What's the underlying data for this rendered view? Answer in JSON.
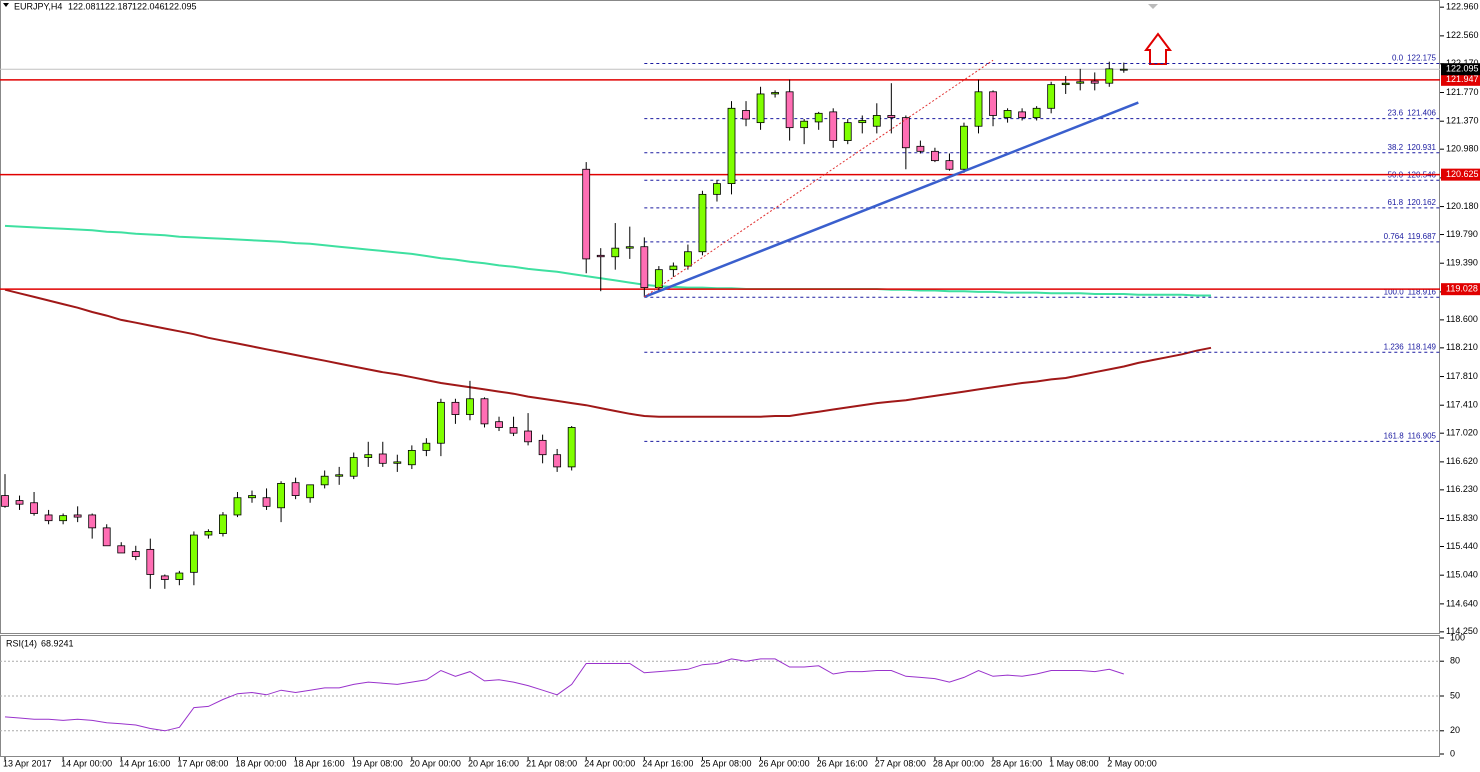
{
  "chart_data": {
    "type": "candlestick",
    "symbol": "EURJPY,H4",
    "categories": [
      "13 Apr 2017",
      null,
      null,
      null,
      "14 Apr 00:00",
      null,
      null,
      null,
      "14 Apr 16:00",
      null,
      null,
      null,
      "17 Apr 08:00",
      null,
      null,
      null,
      "18 Apr 00:00",
      null,
      null,
      null,
      "18 Apr 16:00",
      null,
      null,
      null,
      "19 Apr 08:00",
      null,
      null,
      null,
      "20 Apr 00:00",
      null,
      null,
      null,
      "20 Apr 16:00",
      null,
      null,
      null,
      "21 Apr 08:00",
      null,
      null,
      null,
      "24 Apr 00:00",
      null,
      null,
      null,
      "24 Apr 16:00",
      null,
      null,
      null,
      "25 Apr 08:00",
      null,
      null,
      null,
      "26 Apr 00:00",
      null,
      null,
      null,
      "26 Apr 16:00",
      null,
      null,
      null,
      "27 Apr 08:00",
      null,
      null,
      null,
      "28 Apr 00:00",
      null,
      null,
      null,
      "28 Apr 16:00",
      null,
      null,
      null,
      "1 May 08:00",
      null,
      null,
      null,
      "2 May 00:00",
      null,
      null,
      null,
      null,
      null,
      null,
      null
    ],
    "open": [
      116.15,
      116.08,
      116.05,
      115.88,
      115.8,
      115.88,
      115.88,
      115.7,
      115.45,
      115.37,
      115.4,
      115.03,
      114.98,
      115.08,
      115.6,
      115.62,
      115.88,
      116.12,
      116.12,
      115.98,
      116.33,
      116.12,
      116.3,
      116.42,
      116.42,
      116.68,
      116.73,
      116.6,
      116.58,
      116.78,
      116.88,
      117.45,
      117.28,
      117.5,
      117.18,
      117.1,
      117.05,
      116.92,
      116.72,
      116.55,
      120.7,
      119.5,
      119.48,
      119.6,
      119.62,
      119.05,
      119.3,
      119.35,
      119.55,
      120.35,
      120.5,
      121.52,
      121.35,
      121.75,
      121.78,
      121.28,
      121.36,
      121.5,
      121.1,
      121.35,
      121.3,
      121.45,
      121.42,
      121.02,
      120.95,
      120.82,
      120.7,
      121.3,
      121.78,
      121.42,
      121.5,
      121.42,
      121.55,
      121.88,
      121.9,
      121.93,
      121.9,
      122.081,
      null,
      null,
      null,
      null,
      null,
      null
    ],
    "high": [
      116.45,
      116.15,
      116.2,
      115.95,
      115.9,
      116.0,
      115.9,
      115.75,
      115.5,
      115.45,
      115.55,
      115.05,
      115.1,
      115.65,
      115.68,
      115.92,
      116.2,
      116.22,
      116.25,
      116.35,
      116.4,
      116.3,
      116.5,
      116.55,
      116.75,
      116.9,
      116.9,
      116.72,
      116.85,
      116.95,
      117.5,
      117.5,
      117.75,
      117.52,
      117.25,
      117.25,
      117.3,
      117.0,
      116.8,
      117.12,
      120.8,
      119.6,
      119.95,
      119.9,
      119.75,
      119.35,
      119.4,
      119.65,
      120.4,
      120.55,
      121.65,
      121.65,
      121.85,
      121.8,
      121.95,
      121.4,
      121.5,
      121.55,
      121.4,
      121.45,
      121.62,
      121.9,
      121.45,
      121.1,
      121.0,
      120.92,
      121.35,
      121.95,
      121.8,
      121.55,
      121.55,
      121.58,
      121.92,
      122.0,
      122.1,
      122.05,
      122.2,
      122.187,
      null,
      null,
      null,
      null,
      null,
      null
    ],
    "low": [
      115.98,
      115.95,
      115.87,
      115.75,
      115.75,
      115.78,
      115.55,
      115.45,
      115.35,
      115.25,
      114.85,
      114.85,
      114.9,
      114.9,
      115.55,
      115.58,
      115.85,
      116.05,
      115.95,
      115.78,
      116.1,
      116.05,
      116.25,
      116.3,
      116.38,
      116.55,
      116.55,
      116.48,
      116.52,
      116.7,
      116.7,
      117.15,
      117.2,
      117.1,
      117.05,
      116.98,
      116.85,
      116.6,
      116.48,
      116.5,
      119.25,
      119.0,
      119.3,
      119.45,
      118.92,
      119.0,
      119.2,
      119.3,
      119.5,
      120.25,
      120.35,
      121.3,
      121.25,
      121.7,
      121.1,
      121.05,
      121.25,
      121.0,
      121.05,
      121.2,
      121.2,
      121.2,
      120.7,
      120.92,
      120.8,
      120.68,
      120.65,
      121.2,
      121.3,
      121.35,
      121.38,
      121.38,
      121.48,
      121.75,
      121.8,
      121.8,
      121.85,
      122.046,
      null,
      null,
      null,
      null,
      null,
      null
    ],
    "close": [
      116.0,
      116.03,
      115.9,
      115.8,
      115.87,
      115.85,
      115.7,
      115.45,
      115.35,
      115.3,
      115.05,
      114.98,
      115.07,
      115.6,
      115.65,
      115.88,
      116.12,
      116.15,
      116.0,
      116.32,
      116.15,
      116.3,
      116.42,
      116.44,
      116.68,
      116.72,
      116.6,
      116.62,
      116.78,
      116.88,
      117.45,
      117.28,
      117.5,
      117.15,
      117.1,
      117.02,
      116.9,
      116.72,
      116.55,
      117.1,
      119.45,
      119.48,
      119.6,
      119.62,
      119.05,
      119.3,
      119.35,
      119.55,
      120.35,
      120.5,
      121.55,
      121.4,
      121.75,
      121.77,
      121.28,
      121.37,
      121.48,
      121.1,
      121.35,
      121.38,
      121.45,
      121.42,
      121.0,
      120.95,
      120.82,
      120.7,
      121.3,
      121.78,
      121.45,
      121.52,
      121.42,
      121.55,
      121.88,
      121.9,
      121.92,
      121.9,
      122.1,
      122.095,
      null,
      null,
      null,
      null,
      null,
      null
    ],
    "up_color": "#7fff00",
    "down_color": "#ff6eb4",
    "series": [
      {
        "color": "#3ee0a0",
        "values": [
          119.91,
          119.9,
          119.89,
          119.88,
          119.87,
          119.86,
          119.85,
          119.83,
          119.82,
          119.8,
          119.79,
          119.78,
          119.76,
          119.75,
          119.74,
          119.73,
          119.72,
          119.71,
          119.7,
          119.69,
          119.67,
          119.66,
          119.64,
          119.62,
          119.6,
          119.58,
          119.56,
          119.54,
          119.52,
          119.49,
          119.46,
          119.44,
          119.41,
          119.39,
          119.36,
          119.34,
          119.31,
          119.29,
          119.27,
          119.24,
          119.21,
          119.18,
          119.15,
          119.12,
          119.09,
          119.07,
          119.06,
          119.05,
          119.05,
          119.04,
          119.04,
          119.03,
          119.03,
          119.03,
          119.03,
          119.03,
          119.03,
          119.03,
          119.03,
          119.03,
          119.03,
          119.02,
          119.02,
          119.01,
          119.01,
          119.0,
          119.0,
          118.99,
          118.99,
          118.98,
          118.98,
          118.98,
          118.97,
          118.97,
          118.97,
          118.96,
          118.96,
          118.96,
          118.95,
          118.95,
          118.95,
          118.95,
          118.94,
          118.94
        ]
      },
      {
        "color": "#a01818",
        "values": [
          119.02,
          118.97,
          118.92,
          118.87,
          118.82,
          118.77,
          118.71,
          118.66,
          118.6,
          118.56,
          118.52,
          118.48,
          118.44,
          118.4,
          118.35,
          118.31,
          118.27,
          118.23,
          118.19,
          118.15,
          118.11,
          118.07,
          118.03,
          117.99,
          117.95,
          117.91,
          117.87,
          117.84,
          117.8,
          117.76,
          117.72,
          117.69,
          117.66,
          117.63,
          117.6,
          117.57,
          117.53,
          117.5,
          117.47,
          117.44,
          117.41,
          117.37,
          117.33,
          117.29,
          117.26,
          117.25,
          117.25,
          117.25,
          117.25,
          117.25,
          117.25,
          117.25,
          117.25,
          117.26,
          117.26,
          117.29,
          117.32,
          117.35,
          117.38,
          117.41,
          117.44,
          117.46,
          117.48,
          117.51,
          117.54,
          117.57,
          117.6,
          117.63,
          117.66,
          117.69,
          117.72,
          117.74,
          117.77,
          117.79,
          117.83,
          117.87,
          117.91,
          117.95,
          118.0,
          118.04,
          118.08,
          118.12,
          118.17,
          118.21
        ]
      }
    ],
    "hlines": [
      121.947,
      120.625,
      119.028
    ],
    "hline_color": "#e00000",
    "fib": {
      "x": 44,
      "color": "#1a1aa0",
      "levels": [
        {
          "label": "0.0",
          "price": 122.175
        },
        {
          "label": "23.6",
          "price": 121.406
        },
        {
          "label": "38.2",
          "price": 120.931
        },
        {
          "label": "50.0",
          "price": 120.546
        },
        {
          "label": "61.8",
          "price": 120.162
        },
        {
          "label": "0.764",
          "price": 119.687
        },
        {
          "label": "100.0",
          "price": 118.916
        },
        {
          "label": "1.236",
          "price": 118.149
        },
        {
          "label": "161.8",
          "price": 116.905
        }
      ]
    },
    "trend_lines": [
      {
        "color": "#3a5fcd",
        "style": "solid",
        "x": [
          44,
          78
        ],
        "y": [
          118.92,
          121.63
        ]
      },
      {
        "color": "#e03030",
        "style": "dotted",
        "x": [
          44,
          68
        ],
        "y": [
          118.92,
          122.22
        ]
      }
    ],
    "ylim": [
      114.22,
      123.06
    ],
    "yticks": [
      {
        "value": 122.96,
        "label": "122.960"
      },
      {
        "value": 122.56,
        "label": "122.560"
      },
      {
        "value": 122.17,
        "label": "122.170"
      },
      {
        "value": 121.77,
        "label": "121.770"
      },
      {
        "value": 121.37,
        "label": "121.370"
      },
      {
        "value": 120.98,
        "label": "120.980"
      },
      {
        "value": 120.58,
        "label": "120.580"
      },
      {
        "value": 120.18,
        "label": "120.180"
      },
      {
        "value": 119.79,
        "label": "119.790"
      },
      {
        "value": 119.39,
        "label": "119.390"
      },
      {
        "value": 118.99,
        "label": "118.990"
      },
      {
        "value": 118.6,
        "label": "118.600"
      },
      {
        "value": 118.21,
        "label": "118.210"
      },
      {
        "value": 117.81,
        "label": "117.810"
      },
      {
        "value": 117.41,
        "label": "117.410"
      },
      {
        "value": 117.02,
        "label": "117.020"
      },
      {
        "value": 116.62,
        "label": "116.620"
      },
      {
        "value": 116.23,
        "label": "116.230"
      },
      {
        "value": 115.83,
        "label": "115.830"
      },
      {
        "value": 115.44,
        "label": "115.440"
      },
      {
        "value": 115.04,
        "label": "115.040"
      },
      {
        "value": 114.64,
        "label": "114.640"
      },
      {
        "value": 114.25,
        "label": "114.250"
      }
    ],
    "rsi": {
      "title": "RSI(14)",
      "color": "#9932cc",
      "values": [
        32,
        31,
        30,
        30,
        29,
        30,
        29,
        27,
        26,
        25,
        22,
        20,
        23,
        40,
        41,
        47,
        52,
        53,
        51,
        55,
        53,
        55,
        57,
        57,
        60,
        62,
        61,
        60,
        62,
        64,
        72,
        67,
        71,
        63,
        64,
        62,
        59,
        55,
        51,
        60,
        78,
        78,
        78,
        78,
        70,
        71,
        72,
        73,
        77,
        78,
        82,
        80,
        82,
        82,
        75,
        75,
        76,
        69,
        71,
        71,
        72,
        72,
        67,
        66,
        65,
        62,
        66,
        72,
        67,
        68,
        67,
        69,
        72,
        72,
        72,
        71,
        73,
        68.9241,
        null,
        null,
        null,
        null,
        null,
        null
      ],
      "ylim": [
        0,
        100
      ],
      "yticks": [
        100,
        80,
        50,
        20,
        0
      ]
    }
  }
}
